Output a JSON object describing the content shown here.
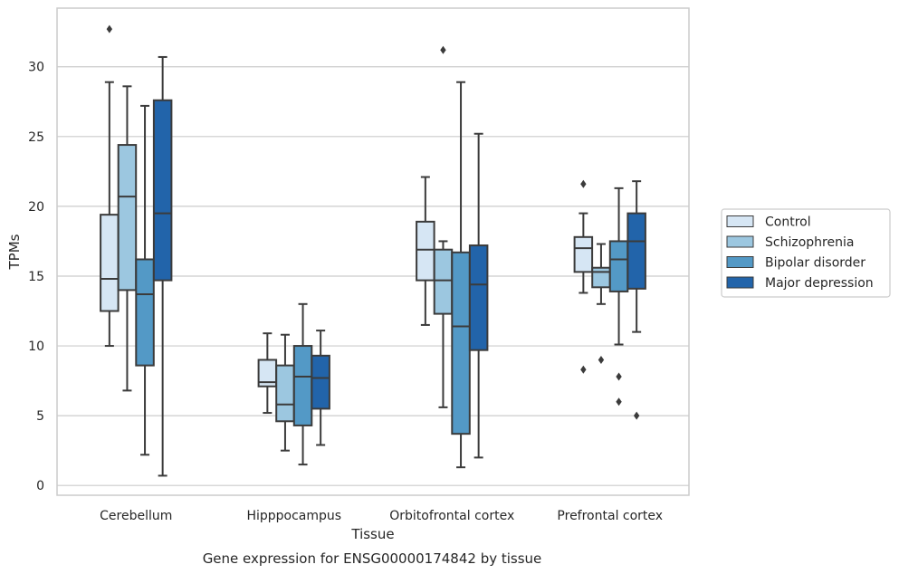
{
  "chart_data": {
    "type": "box",
    "title": "",
    "caption": "Gene expression for ENSG00000174842 by tissue",
    "xlabel": "Tissue",
    "ylabel": "TPMs",
    "ylim": [
      -0.7,
      34.2
    ],
    "yticks": [
      "0",
      "5",
      "10",
      "15",
      "20",
      "25",
      "30"
    ],
    "grid": "horizontal",
    "legend_position": "right",
    "categories": [
      "Cerebellum",
      "Hipppocampus",
      "Orbitofrontal cortex",
      "Prefrontal cortex"
    ],
    "series": [
      {
        "name": "Control",
        "color": "#d6e6f4",
        "boxes": [
          {
            "whisker_low": 10.0,
            "q1": 12.5,
            "median": 14.8,
            "q3": 19.4,
            "whisker_high": 28.9,
            "outliers": [
              32.7
            ]
          },
          {
            "whisker_low": 5.2,
            "q1": 7.1,
            "median": 7.4,
            "q3": 9.0,
            "whisker_high": 10.9,
            "outliers": []
          },
          {
            "whisker_low": 11.5,
            "q1": 14.7,
            "median": 16.9,
            "q3": 18.9,
            "whisker_high": 22.1,
            "outliers": []
          },
          {
            "whisker_low": 13.8,
            "q1": 15.3,
            "median": 17.0,
            "q3": 17.8,
            "whisker_high": 19.5,
            "outliers": [
              21.6,
              8.3
            ]
          }
        ]
      },
      {
        "name": "Schizophrenia",
        "color": "#9cc7e0",
        "boxes": [
          {
            "whisker_low": 6.8,
            "q1": 14.0,
            "median": 20.7,
            "q3": 24.4,
            "whisker_high": 28.6,
            "outliers": []
          },
          {
            "whisker_low": 2.5,
            "q1": 4.6,
            "median": 5.8,
            "q3": 8.6,
            "whisker_high": 10.8,
            "outliers": []
          },
          {
            "whisker_low": 5.6,
            "q1": 12.3,
            "median": 14.7,
            "q3": 16.9,
            "whisker_high": 17.5,
            "outliers": [
              31.2
            ]
          },
          {
            "whisker_low": 13.0,
            "q1": 14.2,
            "median": 15.3,
            "q3": 15.6,
            "whisker_high": 17.3,
            "outliers": [
              9.0
            ]
          }
        ]
      },
      {
        "name": "Bipolar disorder",
        "color": "#5399c6",
        "boxes": [
          {
            "whisker_low": 2.2,
            "q1": 8.6,
            "median": 13.7,
            "q3": 16.2,
            "whisker_high": 27.2,
            "outliers": []
          },
          {
            "whisker_low": 1.5,
            "q1": 4.3,
            "median": 7.8,
            "q3": 10.0,
            "whisker_high": 13.0,
            "outliers": []
          },
          {
            "whisker_low": 1.3,
            "q1": 3.7,
            "median": 11.4,
            "q3": 16.7,
            "whisker_high": 28.9,
            "outliers": []
          },
          {
            "whisker_low": 10.1,
            "q1": 13.9,
            "median": 16.2,
            "q3": 17.5,
            "whisker_high": 21.3,
            "outliers": [
              7.8,
              6.0
            ]
          }
        ]
      },
      {
        "name": "Major depression",
        "color": "#2264aa",
        "boxes": [
          {
            "whisker_low": 0.7,
            "q1": 14.7,
            "median": 19.5,
            "q3": 27.6,
            "whisker_high": 30.7,
            "outliers": []
          },
          {
            "whisker_low": 2.9,
            "q1": 5.5,
            "median": 7.7,
            "q3": 9.3,
            "whisker_high": 11.1,
            "outliers": []
          },
          {
            "whisker_low": 2.0,
            "q1": 9.7,
            "median": 14.4,
            "q3": 17.2,
            "whisker_high": 25.2,
            "outliers": []
          },
          {
            "whisker_low": 11.0,
            "q1": 14.1,
            "median": 17.5,
            "q3": 19.5,
            "whisker_high": 21.8,
            "outliers": [
              5.0
            ]
          }
        ]
      }
    ]
  }
}
